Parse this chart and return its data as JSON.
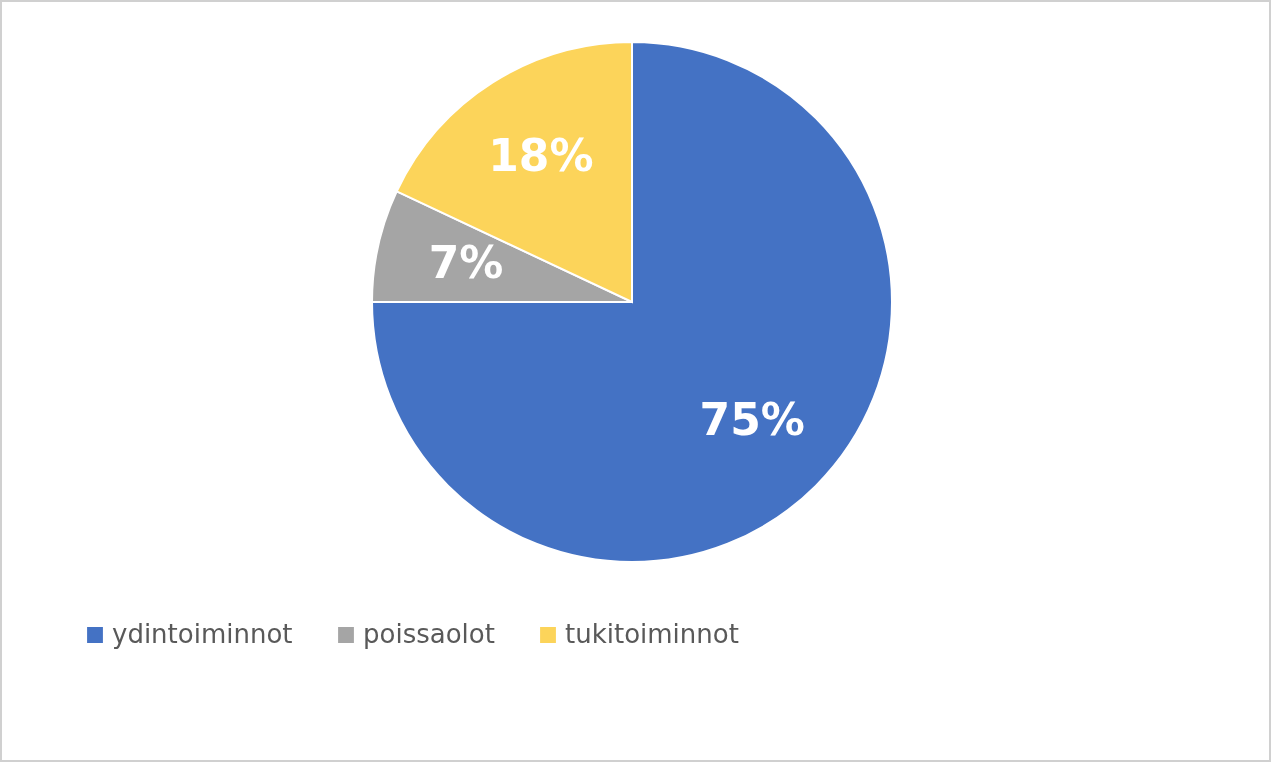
{
  "chart_data": {
    "type": "pie",
    "categories": [
      "ydintoiminnot",
      "poissaolot",
      "tukitoiminnot"
    ],
    "values": [
      75,
      7,
      18
    ],
    "value_labels": [
      "75%",
      "7%",
      "18%"
    ],
    "colors": [
      "#4472c4",
      "#a5a5a5",
      "#fcd45a"
    ],
    "legend": "bottom"
  }
}
